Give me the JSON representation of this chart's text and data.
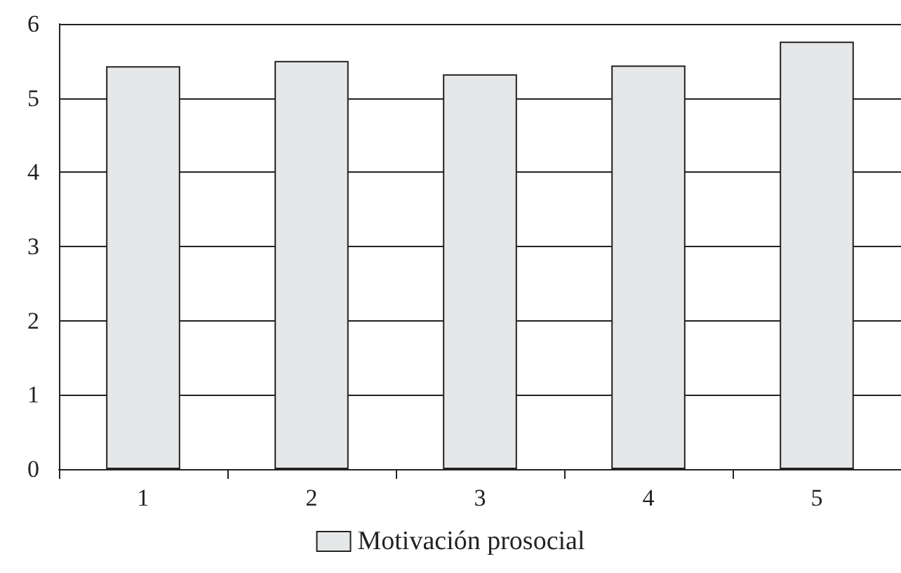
{
  "chart_data": {
    "type": "bar",
    "categories": [
      "1",
      "2",
      "3",
      "4",
      "5"
    ],
    "series": [
      {
        "name": "Motivación prosocial",
        "color": "#e6e7e8",
        "values": [
          5.43,
          5.5,
          5.32,
          5.44,
          5.76
        ]
      }
    ],
    "ylim": [
      0,
      6
    ],
    "yticks": [
      0,
      1,
      2,
      3,
      4,
      5,
      6
    ],
    "grid": "y",
    "legend": "bottom"
  }
}
